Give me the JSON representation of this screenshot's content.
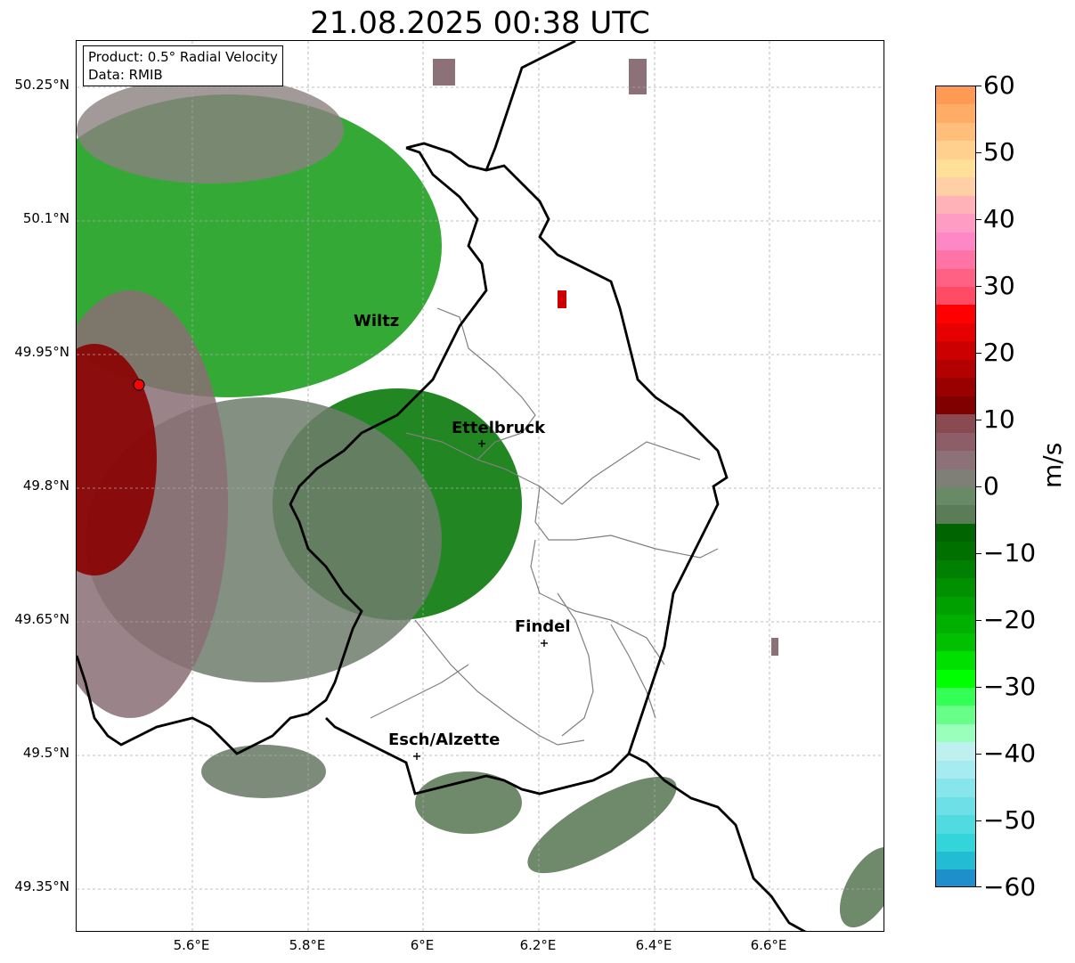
{
  "title": "21.08.2025 00:38 UTC",
  "info": {
    "product": "Product: 0.5° Radial Velocity",
    "source": "Data: RMIB"
  },
  "map": {
    "lat_labels": [
      "50.25°N",
      "50.1°N",
      "49.95°N",
      "49.8°N",
      "49.65°N",
      "49.5°N",
      "49.35°N"
    ],
    "lon_labels": [
      "5.6°E",
      "5.8°E",
      "6°E",
      "6.2°E",
      "6.4°E",
      "6.6°E"
    ],
    "lat_values": [
      50.25,
      50.1,
      49.95,
      49.8,
      49.65,
      49.5,
      49.35
    ],
    "lon_values": [
      5.6,
      5.8,
      6.0,
      6.2,
      6.4,
      6.6
    ],
    "extent": {
      "lon_min": 5.4,
      "lon_max": 6.8,
      "lat_min": 49.3,
      "lat_max": 50.3
    },
    "cities": [
      {
        "name": "Wiltz"
      },
      {
        "name": "Ettelbruck"
      },
      {
        "name": "Findel"
      },
      {
        "name": "Esch/Alzette"
      }
    ],
    "radar_site_color": "#ff0000",
    "grid": "on"
  },
  "colorbar": {
    "ticks": [
      "60",
      "50",
      "40",
      "30",
      "20",
      "10",
      "0",
      "−10",
      "−20",
      "−30",
      "−40",
      "−50",
      "−60"
    ],
    "unit": "m/s",
    "range": [
      -60,
      60
    ],
    "colors_top_to_bottom": [
      "#ff9a55",
      "#ffad66",
      "#ffbf7a",
      "#ffd08e",
      "#ffe099",
      "#ffcfa6",
      "#ffb3b8",
      "#ff9cc4",
      "#ff87c6",
      "#ff74a5",
      "#ff6184",
      "#ff4c64",
      "#ff0000",
      "#e60000",
      "#cc0000",
      "#b30000",
      "#990000",
      "#800000",
      "#8a4a52",
      "#8d5e67",
      "#8c7178",
      "#7f7f77",
      "#688a66",
      "#5a7d58",
      "#006400",
      "#007000",
      "#008000",
      "#009000",
      "#00a000",
      "#00b000",
      "#00c000",
      "#00e000",
      "#00ff00",
      "#33ff55",
      "#66ff88",
      "#99ffbb",
      "#bff0f0",
      "#a6ebef",
      "#88e5eb",
      "#6ce0e6",
      "#4fdbe0",
      "#33d5db",
      "#22bcd3",
      "#1f8fcc"
    ]
  }
}
